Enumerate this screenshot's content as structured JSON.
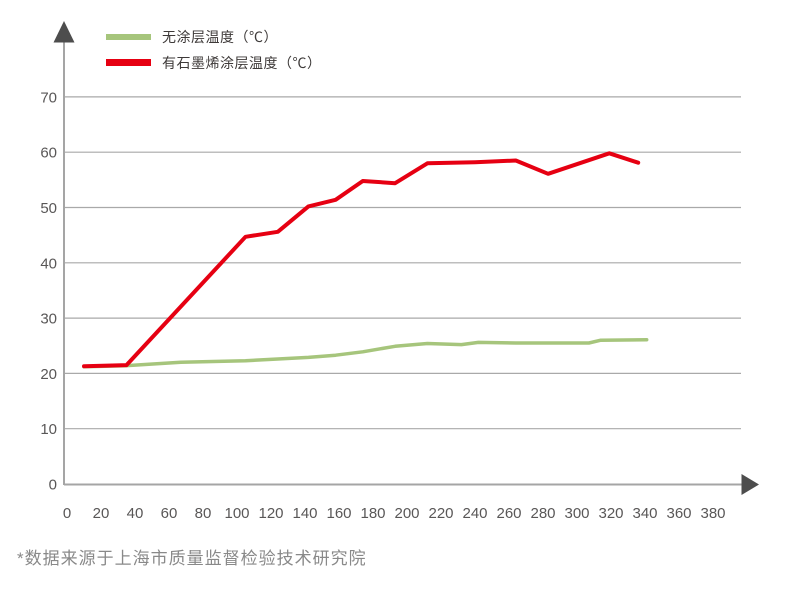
{
  "page": {
    "background": "#ffffff"
  },
  "legend": {
    "items": [
      {
        "label": "无涂层温度（℃）",
        "color": "#a6c57c"
      },
      {
        "label": "有石墨烯涂层温度（℃）",
        "color": "#e60012"
      }
    ]
  },
  "footnote": "*数据来源于上海市质量监督检验技术研究院",
  "chart_data": {
    "type": "line",
    "title": "",
    "xlabel": "",
    "ylabel": "",
    "xlim": [
      0,
      380
    ],
    "ylim": [
      0,
      70
    ],
    "x_ticks": [
      0,
      20,
      40,
      60,
      80,
      100,
      120,
      140,
      160,
      180,
      200,
      220,
      240,
      260,
      280,
      300,
      320,
      340,
      360,
      380
    ],
    "y_ticks": [
      0,
      10,
      20,
      30,
      40,
      50,
      60,
      70
    ],
    "grid": "horizontal",
    "legend_position": "top-left",
    "colors": {
      "axis": "#a5a5a5",
      "gridline": "#a9a9a9",
      "arrow": "#4d4d4d",
      "tick_label": "#595757"
    },
    "series": [
      {
        "name": "无涂层温度（℃）",
        "color": "#a6c57c",
        "line_width": 3.5,
        "points": [
          [
            10,
            21.2
          ],
          [
            35,
            21.4
          ],
          [
            67,
            22.0
          ],
          [
            105,
            22.3
          ],
          [
            124,
            22.6
          ],
          [
            142,
            22.9
          ],
          [
            158,
            23.3
          ],
          [
            174,
            23.9
          ],
          [
            193,
            24.9
          ],
          [
            212,
            25.4
          ],
          [
            232,
            25.2
          ],
          [
            242,
            25.6
          ],
          [
            264,
            25.5
          ],
          [
            307,
            25.5
          ],
          [
            314,
            26.0
          ],
          [
            341,
            26.1
          ]
        ]
      },
      {
        "name": "有石墨烯涂层温度（℃）",
        "color": "#e60012",
        "line_width": 4,
        "points": [
          [
            10,
            21.3
          ],
          [
            35,
            21.5
          ],
          [
            105,
            44.7
          ],
          [
            124,
            45.6
          ],
          [
            142,
            50.2
          ],
          [
            158,
            51.4
          ],
          [
            174,
            54.8
          ],
          [
            193,
            54.4
          ],
          [
            212,
            58.0
          ],
          [
            240,
            58.2
          ],
          [
            264,
            58.5
          ],
          [
            283,
            56.1
          ],
          [
            319,
            59.8
          ],
          [
            336,
            58.1
          ]
        ]
      }
    ]
  }
}
